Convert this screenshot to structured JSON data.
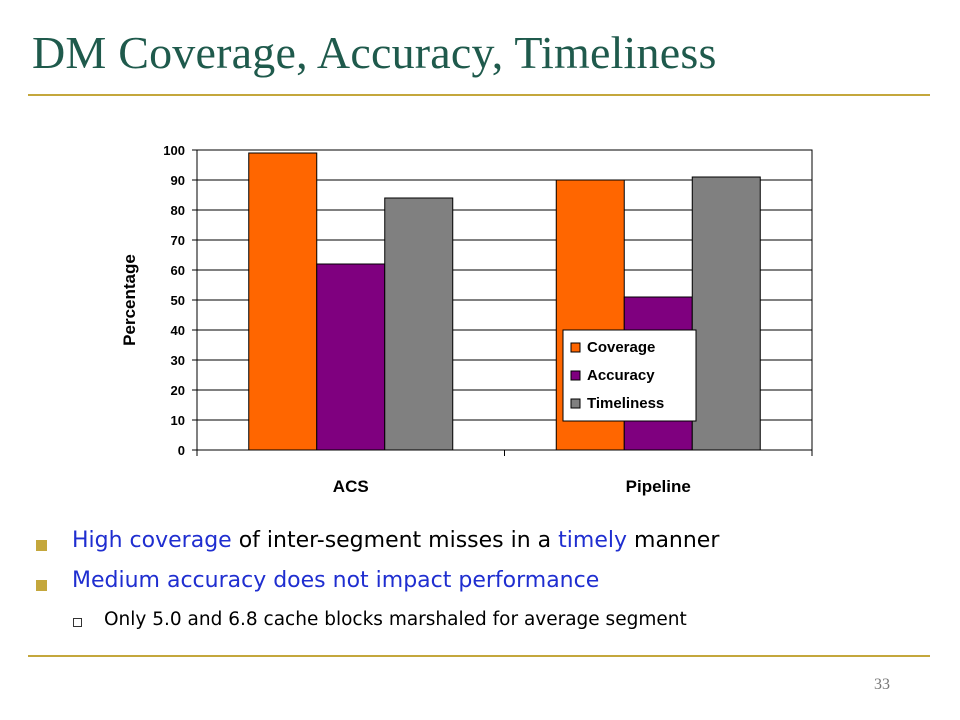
{
  "slide": {
    "title": "DM Coverage, Accuracy, Timeliness",
    "page_number": "33",
    "rule_color": "#c4a73c",
    "title_color": "#1f5a4c"
  },
  "bullets": [
    {
      "parts": [
        {
          "text": "High coverage",
          "highlight": true
        },
        {
          "text": " of inter-segment misses in a ",
          "highlight": false
        },
        {
          "text": "timely",
          "highlight": true
        },
        {
          "text": " manner",
          "highlight": false
        }
      ]
    },
    {
      "parts": [
        {
          "text": "Medium accuracy does not impact performance",
          "highlight": true
        }
      ]
    }
  ],
  "sub_bullets": [
    "Only 5.0 and 6.8 cache blocks marshaled for average segment"
  ],
  "chart_data": {
    "type": "bar",
    "categories": [
      "ACS",
      "Pipeline"
    ],
    "series": [
      {
        "name": "Coverage",
        "color": "#ff6600",
        "values": [
          99,
          90
        ]
      },
      {
        "name": "Accuracy",
        "color": "#7f007f",
        "values": [
          62,
          51
        ]
      },
      {
        "name": "Timeliness",
        "color": "#808080",
        "values": [
          84,
          91
        ]
      }
    ],
    "title": "",
    "xlabel": "",
    "ylabel": "Percentage",
    "ylim": [
      0,
      100
    ],
    "yticks": [
      0,
      10,
      20,
      30,
      40,
      50,
      60,
      70,
      80,
      90,
      100
    ],
    "grid": true,
    "legend": "lower-right inside plot"
  }
}
